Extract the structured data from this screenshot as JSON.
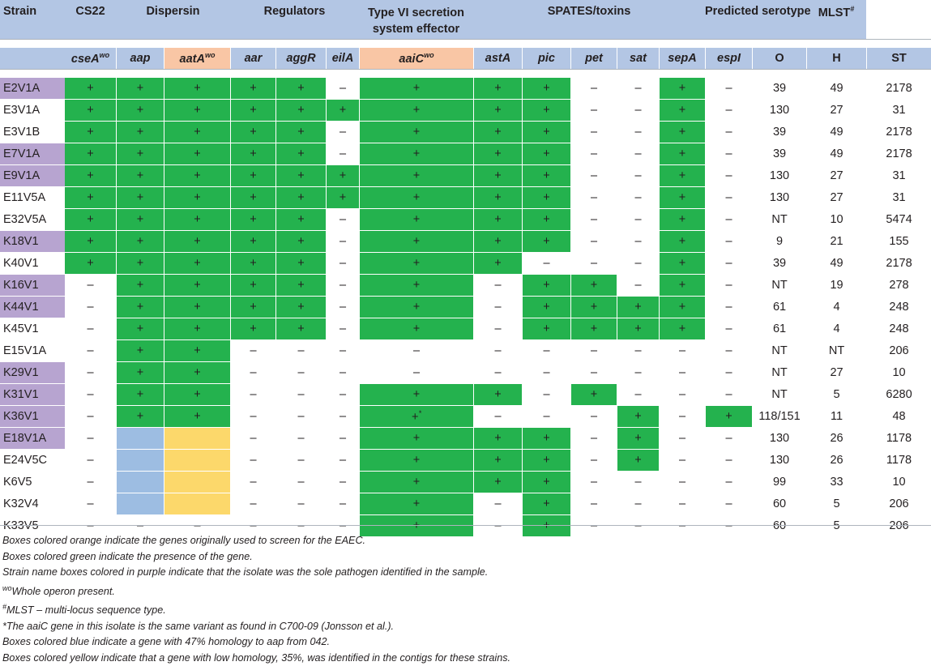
{
  "header": {
    "groups": [
      "Strain",
      "CS22",
      "Dispersin",
      "Regulators",
      "Type VI secretion system effector",
      "SPATES/toxins",
      "Predicted serotype",
      "MLST"
    ],
    "mlst_sup": "#",
    "columns": [
      "cseA",
      "aap",
      "aatA",
      "aar",
      "aggR",
      "eilA",
      "aaiC",
      "astA",
      "pic",
      "pet",
      "sat",
      "sepA",
      "espI",
      "O",
      "H",
      "ST"
    ],
    "wo_sup": "wo"
  },
  "rows": [
    {
      "strain": "E2V1A",
      "cells": [
        "+",
        "+",
        "+",
        "+",
        "+",
        "–",
        "+",
        "+",
        "+",
        "–",
        "–",
        "+",
        "–",
        "39",
        "49",
        "2178"
      ]
    },
    {
      "strain": "E3V1A",
      "cells": [
        "+",
        "+",
        "+",
        "+",
        "+",
        "+",
        "+",
        "+",
        "+",
        "–",
        "–",
        "+",
        "–",
        "130",
        "27",
        "31"
      ]
    },
    {
      "strain": "E3V1B",
      "cells": [
        "+",
        "+",
        "+",
        "+",
        "+",
        "–",
        "+",
        "+",
        "+",
        "–",
        "–",
        "+",
        "–",
        "39",
        "49",
        "2178"
      ]
    },
    {
      "strain": "E7V1A",
      "cells": [
        "+",
        "+",
        "+",
        "+",
        "+",
        "–",
        "+",
        "+",
        "+",
        "–",
        "–",
        "+",
        "–",
        "39",
        "49",
        "2178"
      ]
    },
    {
      "strain": "E9V1A",
      "cells": [
        "+",
        "+",
        "+",
        "+",
        "+",
        "+",
        "+",
        "+",
        "+",
        "–",
        "–",
        "+",
        "–",
        "130",
        "27",
        "31"
      ]
    },
    {
      "strain": "E11V5A",
      "cells": [
        "+",
        "+",
        "+",
        "+",
        "+",
        "+",
        "+",
        "+",
        "+",
        "–",
        "–",
        "+",
        "–",
        "130",
        "27",
        "31"
      ]
    },
    {
      "strain": "E32V5A",
      "cells": [
        "+",
        "+",
        "+",
        "+",
        "+",
        "–",
        "+",
        "+",
        "+",
        "–",
        "–",
        "+",
        "–",
        "NT",
        "10",
        "5474"
      ]
    },
    {
      "strain": "K18V1",
      "cells": [
        "+",
        "+",
        "+",
        "+",
        "+",
        "–",
        "+",
        "+",
        "+",
        "–",
        "–",
        "+",
        "–",
        "9",
        "21",
        "155"
      ]
    },
    {
      "strain": "K40V1",
      "cells": [
        "+",
        "+",
        "+",
        "+",
        "+",
        "–",
        "+",
        "+",
        "–",
        "–",
        "–",
        "+",
        "–",
        "39",
        "49",
        "2178"
      ]
    },
    {
      "strain": "K16V1",
      "cells": [
        "–",
        "+",
        "+",
        "+",
        "+",
        "–",
        "+",
        "–",
        "+",
        "+",
        "–",
        "+",
        "–",
        "NT",
        "19",
        "278"
      ]
    },
    {
      "strain": "K44V1",
      "cells": [
        "–",
        "+",
        "+",
        "+",
        "+",
        "–",
        "+",
        "–",
        "+",
        "+",
        "+",
        "+",
        "–",
        "61",
        "4",
        "248"
      ]
    },
    {
      "strain": "K45V1",
      "cells": [
        "–",
        "+",
        "+",
        "+",
        "+",
        "–",
        "+",
        "–",
        "+",
        "+",
        "+",
        "+",
        "–",
        "61",
        "4",
        "248"
      ]
    },
    {
      "strain": "E15V1A",
      "cells": [
        "–",
        "+",
        "+",
        "–",
        "–",
        "–",
        "–",
        "–",
        "–",
        "–",
        "–",
        "–",
        "–",
        "NT",
        "NT",
        "206"
      ]
    },
    {
      "strain": "K29V1",
      "cells": [
        "–",
        "+",
        "+",
        "–",
        "–",
        "–",
        "–",
        "–",
        "–",
        "–",
        "–",
        "–",
        "–",
        "NT",
        "27",
        "10"
      ]
    },
    {
      "strain": "K31V1",
      "cells": [
        "–",
        "+",
        "+",
        "–",
        "–",
        "–",
        "+",
        "+",
        "–",
        "+",
        "–",
        "–",
        "–",
        "NT",
        "5",
        "6280"
      ]
    },
    {
      "strain": "K36V1",
      "cells": [
        "–",
        "+",
        "+",
        "–",
        "–",
        "–",
        "+*",
        "–",
        "–",
        "–",
        "+",
        "–",
        "+",
        "118/151",
        "11",
        "48"
      ]
    },
    {
      "strain": "E18V1A",
      "cells": [
        "–",
        "",
        "",
        "–",
        "–",
        "–",
        "+",
        "+",
        "+",
        "–",
        "+",
        "–",
        "–",
        "130",
        "26",
        "1178"
      ]
    },
    {
      "strain": "E24V5C",
      "cells": [
        "–",
        "",
        "",
        "–",
        "–",
        "–",
        "+",
        "+",
        "+",
        "–",
        "+",
        "–",
        "–",
        "130",
        "26",
        "1178"
      ]
    },
    {
      "strain": "K6V5",
      "cells": [
        "–",
        "",
        "",
        "–",
        "–",
        "–",
        "+",
        "+",
        "+",
        "–",
        "–",
        "–",
        "–",
        "99",
        "33",
        "10"
      ]
    },
    {
      "strain": "K32V4",
      "cells": [
        "–",
        "",
        "",
        "–",
        "–",
        "–",
        "+",
        "–",
        "+",
        "–",
        "–",
        "–",
        "–",
        "60",
        "5",
        "206"
      ]
    },
    {
      "strain": "K33V5",
      "cells": [
        "–",
        "–",
        "–",
        "–",
        "–",
        "–",
        "+",
        "–",
        "+",
        "–",
        "–",
        "–",
        "–",
        "60",
        "5",
        "206"
      ]
    }
  ],
  "colors": {
    "header_blue": "#b3c6e4",
    "green": "#24b24e",
    "purple": "#b7a4d0",
    "orange": "#f9c6a5",
    "blue": "#9dbde2",
    "yellow": "#fcd86b"
  },
  "notes": [
    "Boxes colored orange indicate the genes originally used to screen for the EAEC.",
    "Boxes colored green indicate the presence of the gene.",
    "Strain name boxes colored in purple indicate that the isolate was the sole pathogen identified in the sample.",
    {
      "sup": "wo",
      "text": "Whole operon present."
    },
    {
      "sup": "#",
      "text": "MLST – multi-locus sequence type."
    },
    "*The aaiC gene in this isolate is the same variant as found in C700-09 (Jonsson et al.).",
    "Boxes colored blue indicate a gene with 47% homology to aap from 042.",
    "Boxes colored yellow indicate that a gene with low homology, 35%, was identified in the contigs for these strains."
  ]
}
